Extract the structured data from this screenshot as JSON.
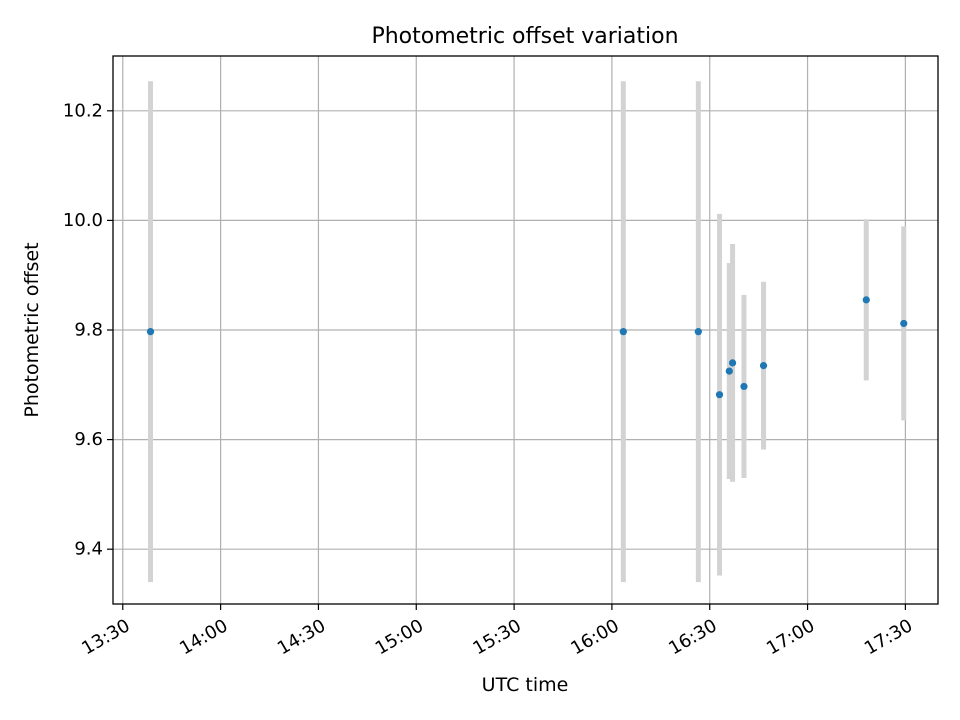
{
  "chart_data": {
    "type": "scatter",
    "title": "Photometric offset variation",
    "xlabel": "UTC time",
    "ylabel": "Photometric offset",
    "x_tick_labels": [
      "13:30",
      "14:00",
      "14:30",
      "15:00",
      "15:30",
      "16:00",
      "16:30",
      "17:00",
      "17:30"
    ],
    "y_tick_labels": [
      "9.4",
      "9.6",
      "9.8",
      "10.0",
      "10.2"
    ],
    "xlim": [
      "13:27",
      "17:40"
    ],
    "ylim": [
      9.3,
      10.3
    ],
    "grid": true,
    "legend": "none",
    "marker_color": "#1f77b4",
    "errorbar_color": "#d3d3d3",
    "points": [
      {
        "x": "13:38:30",
        "y": 9.797,
        "err": 0.457
      },
      {
        "x": "16:03:30",
        "y": 9.797,
        "err": 0.457
      },
      {
        "x": "16:26:30",
        "y": 9.797,
        "err": 0.457
      },
      {
        "x": "16:33:00",
        "y": 9.682,
        "err": 0.33
      },
      {
        "x": "16:36:00",
        "y": 9.725,
        "err": 0.197
      },
      {
        "x": "16:37:00",
        "y": 9.74,
        "err": 0.217
      },
      {
        "x": "16:40:30",
        "y": 9.697,
        "err": 0.167
      },
      {
        "x": "16:46:30",
        "y": 9.735,
        "err": 0.153
      },
      {
        "x": "17:18:00",
        "y": 9.855,
        "err": 0.147
      },
      {
        "x": "17:29:30",
        "y": 9.812,
        "err": 0.177
      }
    ]
  }
}
